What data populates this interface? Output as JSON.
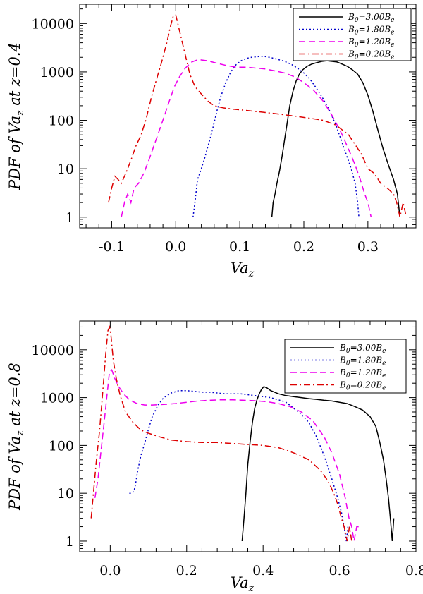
{
  "chart_data": [
    {
      "type": "line",
      "title": "",
      "xlabel_main": "Va",
      "xlabel_sub": "z",
      "ylabel_pre": "PDF of Va",
      "ylabel_sub": "z",
      "ylabel_post": " at z=0.4",
      "yscale": "log",
      "xlim": [
        -0.15,
        0.375
      ],
      "ylim": [
        0.6,
        25000
      ],
      "xticks": [
        -0.1,
        0.0,
        0.1,
        0.2,
        0.3
      ],
      "xtick_labels": [
        "-0.1",
        "0.0",
        "0.1",
        "0.2",
        "0.3"
      ],
      "yticks": [
        1,
        10,
        100,
        1000,
        10000
      ],
      "ytick_labels": [
        "1",
        "10",
        "100",
        "1000",
        "10000"
      ],
      "legend_position": "top-right",
      "series": [
        {
          "name": "B0=3.00Be",
          "label_main": "B",
          "label_sub0": "0",
          "label_mid": "=3.00B",
          "label_sube": "e",
          "color": "#000000",
          "dash": "",
          "x": [
            0.15,
            0.152,
            0.155,
            0.158,
            0.162,
            0.166,
            0.17,
            0.174,
            0.178,
            0.183,
            0.188,
            0.193,
            0.198,
            0.205,
            0.212,
            0.22,
            0.228,
            0.236,
            0.244,
            0.252,
            0.26,
            0.268,
            0.276,
            0.284,
            0.292,
            0.3,
            0.308,
            0.316,
            0.324,
            0.332,
            0.34,
            0.346,
            0.35
          ],
          "y": [
            1,
            2,
            3,
            5,
            9,
            18,
            40,
            90,
            200,
            400,
            650,
            900,
            1100,
            1300,
            1450,
            1550,
            1650,
            1700,
            1650,
            1600,
            1450,
            1300,
            1100,
            900,
            600,
            330,
            150,
            60,
            25,
            12,
            6,
            3,
            1
          ]
        },
        {
          "name": "B0=1.80Be",
          "label_main": "B",
          "label_sub0": "0",
          "label_mid": "=1.80B",
          "label_sube": "e",
          "color": "#0000cc",
          "dash": "2,3",
          "x": [
            0.027,
            0.03,
            0.034,
            0.04,
            0.046,
            0.052,
            0.058,
            0.064,
            0.07,
            0.078,
            0.086,
            0.094,
            0.102,
            0.11,
            0.118,
            0.126,
            0.134,
            0.142,
            0.15,
            0.16,
            0.17,
            0.18,
            0.19,
            0.2,
            0.21,
            0.22,
            0.23,
            0.24,
            0.25,
            0.258,
            0.266,
            0.274,
            0.28,
            0.284,
            0.286
          ],
          "y": [
            1,
            2,
            6,
            10,
            18,
            35,
            70,
            150,
            300,
            600,
            1000,
            1400,
            1700,
            1900,
            2000,
            2050,
            2100,
            2050,
            1950,
            1800,
            1650,
            1450,
            1200,
            950,
            700,
            450,
            280,
            160,
            80,
            40,
            20,
            10,
            5,
            2,
            1
          ]
        },
        {
          "name": "B0=1.20Be",
          "label_main": "B",
          "label_sub0": "0",
          "label_mid": "=1.20B",
          "label_sube": "e",
          "color": "#ee00ee",
          "dash": "9,5",
          "x": [
            -0.085,
            -0.08,
            -0.075,
            -0.07,
            -0.065,
            -0.058,
            -0.05,
            -0.042,
            -0.034,
            -0.026,
            -0.018,
            -0.01,
            -0.002,
            0.006,
            0.015,
            0.025,
            0.035,
            0.05,
            0.065,
            0.08,
            0.095,
            0.11,
            0.125,
            0.14,
            0.155,
            0.17,
            0.185,
            0.2,
            0.215,
            0.23,
            0.245,
            0.26,
            0.27,
            0.28,
            0.288,
            0.295,
            0.3,
            0.305
          ],
          "y": [
            1,
            2,
            3,
            2,
            4,
            5,
            8,
            15,
            30,
            60,
            120,
            250,
            500,
            800,
            1200,
            1600,
            1800,
            1700,
            1500,
            1350,
            1250,
            1250,
            1200,
            1150,
            1050,
            950,
            800,
            600,
            420,
            250,
            120,
            50,
            25,
            12,
            6,
            3,
            2,
            1
          ]
        },
        {
          "name": "B0=0.20Be",
          "label_main": "B",
          "label_sub0": "0",
          "label_mid": "=0.20B",
          "label_sube": "e",
          "color": "#dd0000",
          "dash": "9,4,2,4",
          "x": [
            -0.105,
            -0.1,
            -0.095,
            -0.09,
            -0.085,
            -0.078,
            -0.07,
            -0.062,
            -0.054,
            -0.046,
            -0.038,
            -0.03,
            -0.022,
            -0.014,
            -0.008,
            -0.004,
            0.0,
            0.006,
            0.014,
            0.022,
            0.03,
            0.04,
            0.05,
            0.06,
            0.075,
            0.09,
            0.11,
            0.13,
            0.15,
            0.17,
            0.19,
            0.21,
            0.23,
            0.25,
            0.27,
            0.29,
            0.3,
            0.31,
            0.32,
            0.33,
            0.34,
            0.345,
            0.35,
            0.355,
            0.36
          ],
          "y": [
            2,
            4,
            7,
            6,
            5,
            8,
            15,
            30,
            50,
            110,
            300,
            700,
            1600,
            4000,
            9000,
            14000,
            15000,
            7000,
            2500,
            900,
            500,
            350,
            250,
            200,
            180,
            170,
            160,
            150,
            140,
            130,
            120,
            110,
            100,
            80,
            50,
            20,
            10,
            8,
            5,
            4,
            3,
            2,
            1,
            2,
            1
          ]
        }
      ]
    },
    {
      "type": "line",
      "title": "",
      "xlabel_main": "Va",
      "xlabel_sub": "z",
      "ylabel_pre": "PDF of Va",
      "ylabel_sub": "z",
      "ylabel_post": " at z=0.8",
      "yscale": "log",
      "xlim": [
        -0.08,
        0.8
      ],
      "ylim": [
        0.6,
        40000
      ],
      "xticks": [
        0.0,
        0.2,
        0.4,
        0.6,
        0.8
      ],
      "xtick_labels": [
        "0.0",
        "0.2",
        "0.4",
        "0.6",
        "0.8"
      ],
      "yticks": [
        1,
        10,
        100,
        1000,
        10000
      ],
      "ytick_labels": [
        "1",
        "10",
        "100",
        "1000",
        "10000"
      ],
      "legend_position": "top-right",
      "series": [
        {
          "name": "B0=3.00Be",
          "label_main": "B",
          "label_sub0": "0",
          "label_mid": "=3.00B",
          "label_sube": "e",
          "color": "#000000",
          "dash": "",
          "x": [
            0.345,
            0.35,
            0.355,
            0.36,
            0.366,
            0.372,
            0.378,
            0.384,
            0.39,
            0.396,
            0.402,
            0.41,
            0.42,
            0.44,
            0.46,
            0.48,
            0.5,
            0.52,
            0.54,
            0.56,
            0.58,
            0.6,
            0.62,
            0.64,
            0.66,
            0.68,
            0.695,
            0.705,
            0.715,
            0.722,
            0.728,
            0.733,
            0.738,
            0.742
          ],
          "y": [
            1,
            3,
            10,
            40,
            120,
            300,
            600,
            900,
            1200,
            1500,
            1700,
            1600,
            1400,
            1200,
            1100,
            1050,
            1000,
            950,
            920,
            880,
            850,
            800,
            750,
            650,
            550,
            400,
            250,
            120,
            50,
            20,
            8,
            3,
            1,
            3
          ]
        },
        {
          "name": "B0=1.80Be",
          "label_main": "B",
          "label_sub0": "0",
          "label_mid": "=1.80B",
          "label_sube": "e",
          "color": "#0000cc",
          "dash": "2,3",
          "x": [
            0.05,
            0.056,
            0.062,
            0.066,
            0.072,
            0.08,
            0.09,
            0.1,
            0.11,
            0.125,
            0.14,
            0.16,
            0.18,
            0.2,
            0.22,
            0.24,
            0.26,
            0.28,
            0.3,
            0.32,
            0.34,
            0.36,
            0.38,
            0.4,
            0.42,
            0.44,
            0.46,
            0.48,
            0.5,
            0.52,
            0.54,
            0.56,
            0.58,
            0.595,
            0.605,
            0.612,
            0.618,
            0.622
          ],
          "y": [
            10,
            10,
            11,
            15,
            30,
            60,
            110,
            220,
            400,
            700,
            1000,
            1250,
            1400,
            1400,
            1350,
            1300,
            1300,
            1250,
            1200,
            1200,
            1200,
            1150,
            1100,
            1050,
            1000,
            900,
            800,
            600,
            450,
            300,
            150,
            60,
            20,
            8,
            4,
            2,
            1,
            2
          ]
        },
        {
          "name": "B0=1.20Be",
          "label_main": "B",
          "label_sub0": "0",
          "label_mid": "=1.20B",
          "label_sube": "e",
          "color": "#ee00ee",
          "dash": "9,5",
          "x": [
            -0.04,
            -0.032,
            -0.024,
            -0.016,
            -0.008,
            -0.002,
            0.004,
            0.012,
            0.022,
            0.035,
            0.05,
            0.07,
            0.09,
            0.11,
            0.14,
            0.17,
            0.2,
            0.23,
            0.26,
            0.29,
            0.32,
            0.35,
            0.38,
            0.41,
            0.44,
            0.47,
            0.5,
            0.53,
            0.56,
            0.58,
            0.6,
            0.615,
            0.625,
            0.632,
            0.638,
            0.645,
            0.65
          ],
          "y": [
            8,
            20,
            80,
            300,
            1200,
            3500,
            3800,
            2500,
            1700,
            1200,
            900,
            750,
            700,
            700,
            720,
            750,
            800,
            850,
            880,
            900,
            900,
            880,
            860,
            820,
            750,
            650,
            500,
            330,
            150,
            70,
            25,
            8,
            3,
            2,
            1,
            2,
            2
          ]
        },
        {
          "name": "B0=0.20Be",
          "label_main": "B",
          "label_sub0": "0",
          "label_mid": "=0.20B",
          "label_sube": "e",
          "color": "#dd0000",
          "dash": "9,4,2,4",
          "x": [
            -0.05,
            -0.044,
            -0.036,
            -0.028,
            -0.02,
            -0.012,
            -0.006,
            -0.002,
            0.002,
            0.008,
            0.016,
            0.026,
            0.04,
            0.06,
            0.08,
            0.1,
            0.13,
            0.16,
            0.2,
            0.24,
            0.28,
            0.32,
            0.36,
            0.4,
            0.44,
            0.48,
            0.52,
            0.55,
            0.57,
            0.585,
            0.595,
            0.605,
            0.612,
            0.62,
            0.626,
            0.632
          ],
          "y": [
            3,
            10,
            50,
            200,
            1200,
            8000,
            25000,
            30000,
            20000,
            6000,
            2500,
            1100,
            500,
            300,
            210,
            180,
            150,
            130,
            120,
            115,
            115,
            110,
            105,
            100,
            90,
            70,
            50,
            30,
            18,
            10,
            6,
            3,
            2,
            1,
            2,
            1
          ]
        }
      ]
    }
  ]
}
